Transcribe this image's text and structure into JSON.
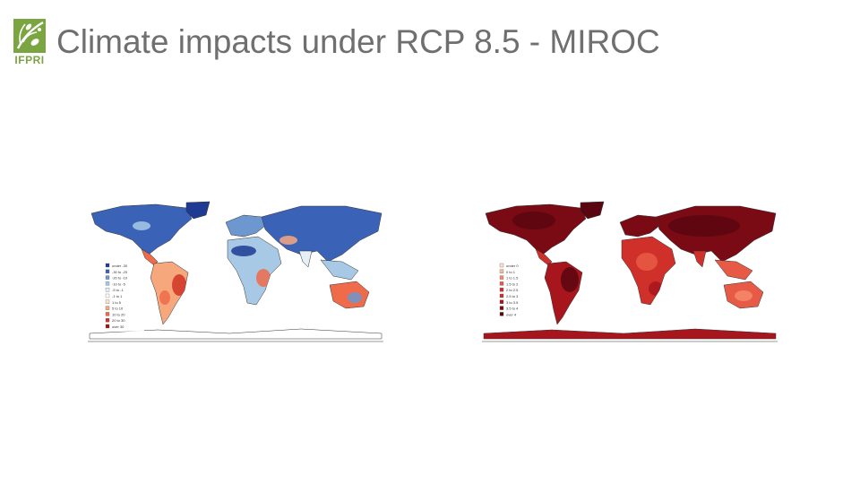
{
  "slide": {
    "title": "Climate impacts under RCP 8.5 - MIROC"
  },
  "logo": {
    "text": "IFPRI",
    "icon": "ifpri-leaf-logo-icon"
  },
  "colors": {
    "brand_green": "#7ba541",
    "title_text": "#6f6f6f",
    "ocean": "#ffffff",
    "left_scale": [
      "#1f3a93",
      "#3a63b8",
      "#6c97cf",
      "#a8c9e6",
      "#e6eef6",
      "#ffffff",
      "#fde3cf",
      "#f7a77c",
      "#ef6b4a",
      "#d03226",
      "#9b1418"
    ],
    "right_scale": [
      "#fde0d3",
      "#fbb8a0",
      "#f48a6c",
      "#e75a45",
      "#d0302a",
      "#a7151d",
      "#7a0b14",
      "#5a0610"
    ]
  },
  "maps": [
    {
      "id": "precipitation-change",
      "color_scale": "diverging-blue-red",
      "legend_items": [
        "under -30",
        "-30 to -20",
        "-20 to -10",
        "-10 to -5",
        "-5 to -1",
        "-1 to 1",
        "1 to 5",
        "5 to 10",
        "10 to 20",
        "20 to 30",
        "over 30"
      ]
    },
    {
      "id": "temperature-change",
      "color_scale": "sequential-red",
      "legend_items": [
        "under 0",
        "0 to 1",
        "1 to 1.5",
        "1.5 to 2",
        "2 to 2.5",
        "2.5 to 3",
        "3 to 3.5",
        "3.5 to 4",
        "over 4"
      ]
    }
  ]
}
